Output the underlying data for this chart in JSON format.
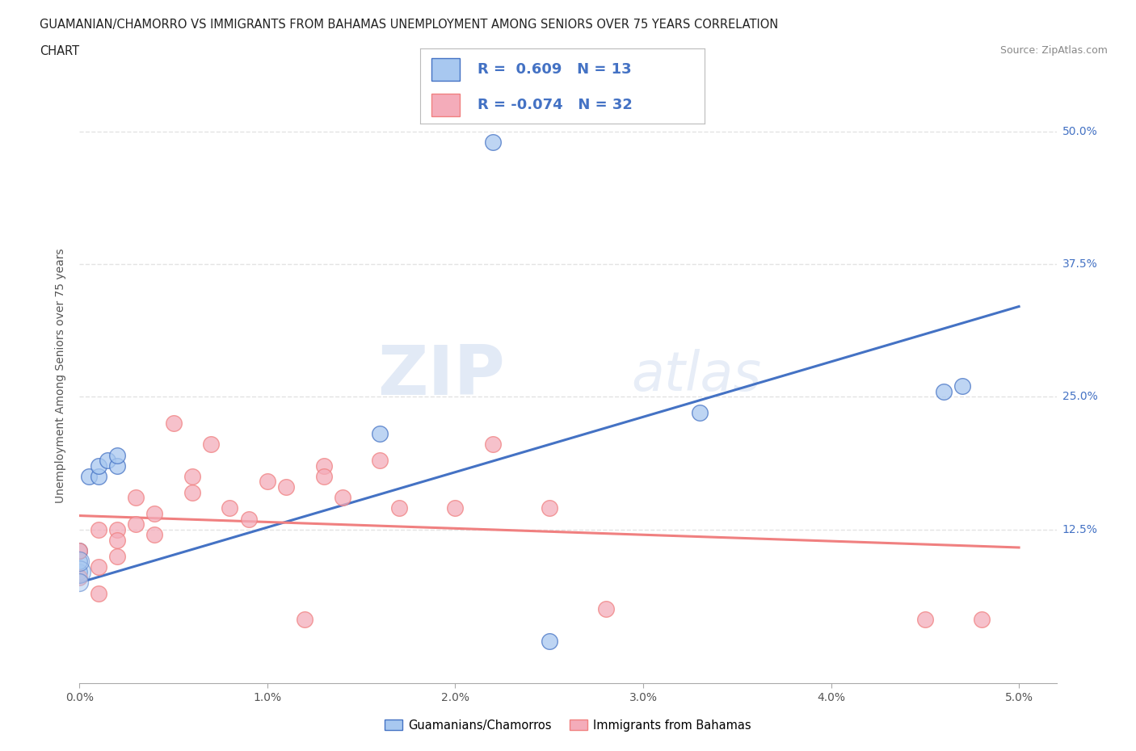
{
  "title_line1": "GUAMANIAN/CHAMORRO VS IMMIGRANTS FROM BAHAMAS UNEMPLOYMENT AMONG SENIORS OVER 75 YEARS CORRELATION",
  "title_line2": "CHART",
  "source_text": "Source: ZipAtlas.com",
  "ylabel": "Unemployment Among Seniors over 75 years",
  "xlim": [
    0.0,
    0.052
  ],
  "ylim": [
    -0.02,
    0.56
  ],
  "xtick_values": [
    0.0,
    0.01,
    0.02,
    0.03,
    0.04,
    0.05
  ],
  "ytick_values": [
    0.125,
    0.25,
    0.375,
    0.5
  ],
  "ytick_labels": [
    "12.5%",
    "25.0%",
    "37.5%",
    "50.0%"
  ],
  "blue_R": 0.609,
  "blue_N": 13,
  "pink_R": -0.074,
  "pink_N": 32,
  "blue_color": "#A8C8F0",
  "pink_color": "#F4ACBA",
  "blue_line_color": "#4472C4",
  "pink_line_color": "#F08080",
  "watermark_zip": "ZIP",
  "watermark_atlas": "atlas",
  "legend_label_blue": "Guamanians/Chamorros",
  "legend_label_pink": "Immigrants from Bahamas",
  "blue_scatter_x": [
    0.0,
    0.0,
    0.0,
    0.0005,
    0.001,
    0.001,
    0.0015,
    0.002,
    0.002,
    0.016,
    0.033,
    0.046,
    0.047
  ],
  "blue_scatter_y": [
    0.085,
    0.095,
    0.105,
    0.175,
    0.175,
    0.185,
    0.19,
    0.185,
    0.195,
    0.215,
    0.235,
    0.255,
    0.26
  ],
  "blue_outlier_x": [
    0.022
  ],
  "blue_outlier_y": [
    0.49
  ],
  "blue_bottom_x": [
    0.025
  ],
  "blue_bottom_y": [
    0.02
  ],
  "pink_scatter_x": [
    0.0,
    0.0,
    0.001,
    0.001,
    0.001,
    0.002,
    0.002,
    0.002,
    0.003,
    0.003,
    0.004,
    0.004,
    0.005,
    0.006,
    0.006,
    0.007,
    0.008,
    0.009,
    0.01,
    0.011,
    0.012,
    0.013,
    0.013,
    0.014,
    0.016,
    0.017,
    0.02,
    0.022,
    0.025,
    0.028,
    0.045,
    0.048
  ],
  "pink_scatter_y": [
    0.105,
    0.08,
    0.125,
    0.09,
    0.065,
    0.125,
    0.115,
    0.1,
    0.155,
    0.13,
    0.14,
    0.12,
    0.225,
    0.175,
    0.16,
    0.205,
    0.145,
    0.135,
    0.17,
    0.165,
    0.04,
    0.185,
    0.175,
    0.155,
    0.19,
    0.145,
    0.145,
    0.205,
    0.145,
    0.05,
    0.04,
    0.04
  ],
  "blue_trend_x": [
    0.0,
    0.05
  ],
  "blue_trend_y": [
    0.075,
    0.335
  ],
  "pink_trend_x": [
    0.0,
    0.05
  ],
  "pink_trend_y": [
    0.138,
    0.108
  ],
  "grid_color": "#DDDDDD",
  "bg_color": "#FFFFFF"
}
